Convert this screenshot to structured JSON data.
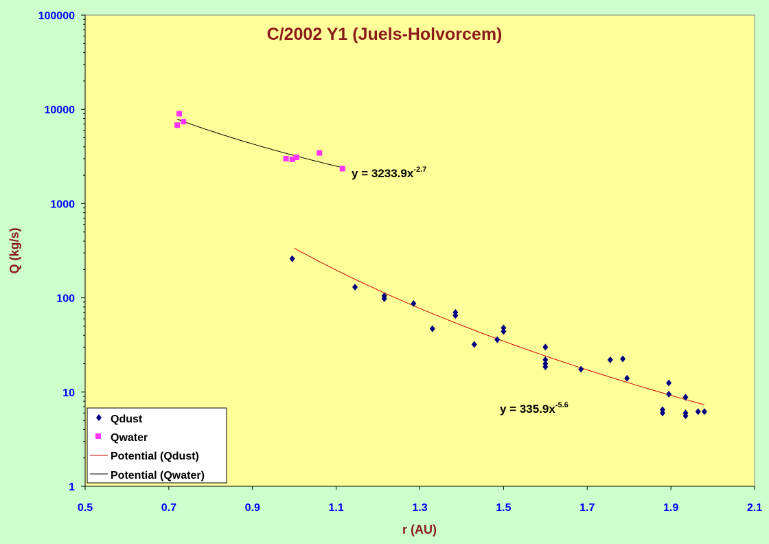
{
  "chart_data": {
    "type": "scatter",
    "title": "C/2002 Y1 (Juels-Holvorcem)",
    "xlabel": "r (AU)",
    "ylabel": "Q (kg/s)",
    "xlim": [
      0.5,
      2.1
    ],
    "ylim": [
      1,
      100000
    ],
    "y_scale": "log",
    "x_ticks": [
      "0.5",
      "0.7",
      "0.9",
      "1.1",
      "1.3",
      "1.5",
      "1.7",
      "1.9",
      "2.1"
    ],
    "y_ticks": [
      "1",
      "10",
      "100",
      "1000",
      "10000",
      "100000"
    ],
    "background_color": "#ffff99",
    "outer_background_color": "#ccffcc",
    "legend_position": "bottom-left",
    "series": [
      {
        "name": "Qdust",
        "marker": "diamond",
        "color": "#000080",
        "points": [
          [
            0.995,
            260
          ],
          [
            1.145,
            130
          ],
          [
            1.215,
            105
          ],
          [
            1.215,
            98
          ],
          [
            1.285,
            87
          ],
          [
            1.33,
            47
          ],
          [
            1.385,
            70
          ],
          [
            1.385,
            65
          ],
          [
            1.43,
            32
          ],
          [
            1.485,
            36
          ],
          [
            1.5,
            48
          ],
          [
            1.5,
            44
          ],
          [
            1.6,
            30
          ],
          [
            1.6,
            22
          ],
          [
            1.6,
            20
          ],
          [
            1.6,
            18.5
          ],
          [
            1.685,
            17.5
          ],
          [
            1.755,
            22
          ],
          [
            1.785,
            22.5
          ],
          [
            1.795,
            14
          ],
          [
            1.88,
            6.5
          ],
          [
            1.88,
            6
          ],
          [
            1.895,
            12.5
          ],
          [
            1.895,
            9.5
          ],
          [
            1.935,
            8.8
          ],
          [
            1.935,
            6
          ],
          [
            1.935,
            5.6
          ],
          [
            1.965,
            6.2
          ],
          [
            1.98,
            6.2
          ]
        ]
      },
      {
        "name": "Qwater",
        "marker": "square",
        "color": "#ff33ff",
        "points": [
          [
            0.72,
            6800
          ],
          [
            0.725,
            9000
          ],
          [
            0.735,
            7400
          ],
          [
            0.98,
            3000
          ],
          [
            0.995,
            2950
          ],
          [
            1.005,
            3100
          ],
          [
            1.06,
            3450
          ],
          [
            1.115,
            2350
          ]
        ]
      }
    ],
    "trendlines": [
      {
        "name": "Potential (Qdust)",
        "type": "power",
        "coefficient": 335.9,
        "exponent": -5.6,
        "x_range": [
          1.0,
          1.98
        ],
        "color": "#cc0000",
        "equation_label": "y = 335.9x",
        "equation_sup": "-5.6"
      },
      {
        "name": "Potential (Qwater)",
        "type": "power",
        "coefficient": 3233.9,
        "exponent": -2.7,
        "x_range": [
          0.72,
          1.115
        ],
        "color": "#000000",
        "equation_label": "y = 3233.9x",
        "equation_sup": "-2.7"
      }
    ]
  }
}
